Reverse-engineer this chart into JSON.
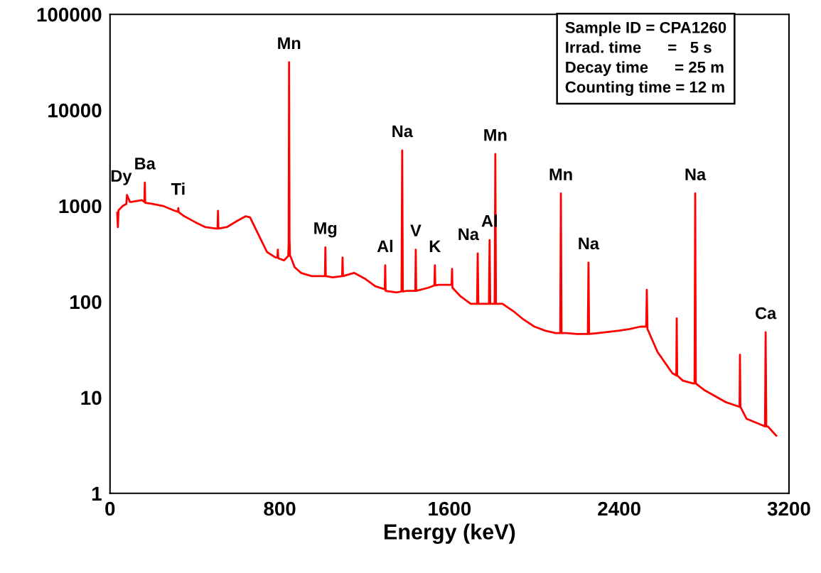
{
  "chart_data": {
    "type": "line",
    "xlabel": "Energy (keV)",
    "xlim": [
      0,
      3200
    ],
    "xticks": [
      0,
      800,
      1600,
      2400,
      3200
    ],
    "ylim": [
      1,
      100000
    ],
    "yticks": [
      1,
      10,
      100,
      1000,
      10000,
      100000
    ],
    "log": "y",
    "grid": false,
    "marker": "none",
    "line_style": "solid",
    "series": [
      {
        "color": "#ff0000",
        "x": [
          34,
          37,
          40,
          60,
          77,
          80,
          94,
          97,
          100,
          150,
          162,
          164,
          166,
          200,
          250,
          300,
          320,
          322,
          324,
          350,
          400,
          450,
          500,
          507,
          509,
          511,
          550,
          600,
          640,
          660,
          700,
          740,
          780,
          789,
          791,
          793,
          820,
          840,
          842,
          844,
          846,
          848,
          850,
          870,
          900,
          950,
          1000,
          1013,
          1015,
          1017,
          1050,
          1094,
          1096,
          1098,
          1150,
          1200,
          1250,
          1295,
          1297,
          1299,
          1350,
          1374,
          1377,
          1380,
          1400,
          1439,
          1441,
          1443,
          1500,
          1529,
          1531,
          1533,
          1550,
          1600,
          1610,
          1612,
          1614,
          1650,
          1700,
          1730,
          1733,
          1736,
          1750,
          1786,
          1789,
          1792,
          1800,
          1813,
          1816,
          1819,
          1850,
          1900,
          1950,
          2000,
          2050,
          2100,
          2122,
          2125,
          2128,
          2150,
          2200,
          2252,
          2255,
          2258,
          2300,
          2400,
          2450,
          2500,
          2527,
          2530,
          2533,
          2580,
          2650,
          2669,
          2671,
          2673,
          2700,
          2750,
          2755,
          2758,
          2761,
          2800,
          2900,
          2967,
          2969,
          2971,
          3000,
          3087,
          3090,
          3093,
          3100,
          3140
        ],
        "values": [
          850,
          600,
          900,
          1000,
          1050,
          1300,
          1100,
          1100,
          1100,
          1150,
          1100,
          1750,
          1080,
          1050,
          1000,
          900,
          870,
          950,
          860,
          780,
          680,
          600,
          580,
          580,
          890,
          580,
          600,
          700,
          780,
          760,
          500,
          330,
          290,
          290,
          350,
          285,
          270,
          300,
          400,
          31600,
          460,
          300,
          300,
          230,
          200,
          185,
          185,
          185,
          370,
          185,
          180,
          185,
          290,
          185,
          200,
          175,
          145,
          135,
          240,
          130,
          125,
          128,
          3800,
          128,
          130,
          130,
          350,
          130,
          140,
          148,
          240,
          148,
          150,
          150,
          150,
          220,
          140,
          115,
          95,
          95,
          320,
          95,
          95,
          95,
          440,
          95,
          95,
          95,
          3480,
          95,
          95,
          80,
          65,
          55,
          50,
          47,
          47,
          1350,
          47,
          47,
          46,
          46,
          256,
          46,
          47,
          50,
          52,
          55,
          55,
          133,
          52,
          30,
          18,
          17,
          67,
          17,
          15,
          14,
          14,
          1350,
          14,
          12,
          9,
          8,
          28,
          8,
          6,
          5,
          48,
          5,
          5,
          4
        ]
      }
    ],
    "annotations": [
      {
        "text": "Dy",
        "x": 94,
        "y": 1300
      },
      {
        "text": "Ba",
        "x": 164,
        "y": 1750
      },
      {
        "text": "Ti",
        "x": 322,
        "y": 950
      },
      {
        "text": "Mn",
        "x": 844,
        "y": 31600
      },
      {
        "text": "Mg",
        "x": 1015,
        "y": 370
      },
      {
        "text": "Al",
        "x": 1297,
        "y": 240
      },
      {
        "text": "Na",
        "x": 1377,
        "y": 3800
      },
      {
        "text": "V",
        "x": 1441,
        "y": 350
      },
      {
        "text": "K",
        "x": 1531,
        "y": 240
      },
      {
        "text": "Na",
        "x": 1733,
        "y": 320
      },
      {
        "text": "Al",
        "x": 1789,
        "y": 440
      },
      {
        "text": "Mn",
        "x": 1816,
        "y": 3480
      },
      {
        "text": "Mn",
        "x": 2125,
        "y": 1350
      },
      {
        "text": "Na",
        "x": 2255,
        "y": 256
      },
      {
        "text": "Na",
        "x": 2758,
        "y": 1350
      },
      {
        "text": "Ca",
        "x": 3090,
        "y": 48
      },
      "Sample ID = CPA1260",
      "Irrad. time      =   5 s",
      "Decay time      = 25 m",
      "Counting time = 12 m"
    ]
  }
}
